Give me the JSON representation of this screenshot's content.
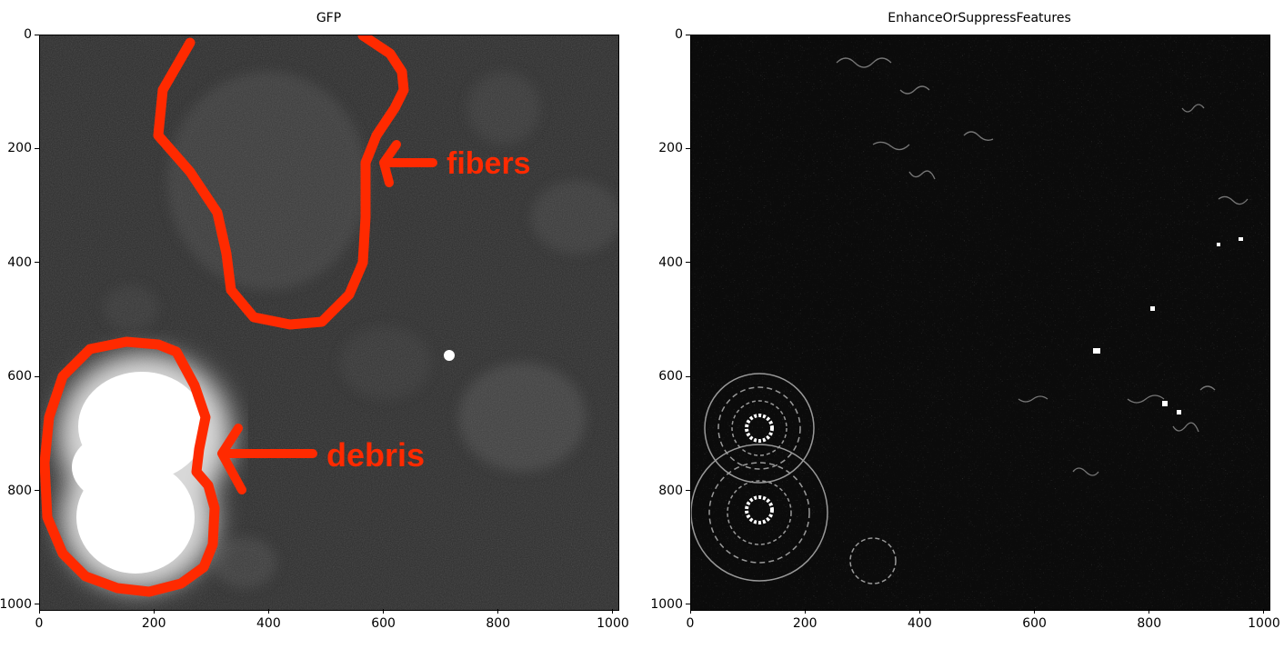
{
  "figure": {
    "panels": [
      {
        "id": "gfp",
        "title": "GFP",
        "x_ticks": [
          "0",
          "200",
          "400",
          "600",
          "800",
          "1000"
        ],
        "y_ticks": [
          "0",
          "200",
          "400",
          "600",
          "800",
          "1000"
        ],
        "annotations": [
          {
            "label": "fibers",
            "color": "#ff2a00"
          },
          {
            "label": "debris",
            "color": "#ff2a00"
          }
        ]
      },
      {
        "id": "enhance",
        "title": "EnhanceOrSuppressFeatures",
        "x_ticks": [
          "0",
          "200",
          "400",
          "600",
          "800",
          "1000"
        ],
        "y_ticks": [
          "0",
          "200",
          "400",
          "600",
          "800",
          "1000"
        ]
      }
    ]
  },
  "colors": {
    "annotation": "#ff2a00",
    "gfp_background": "#2c2c2c",
    "enhance_background": "#0b0b0b"
  }
}
